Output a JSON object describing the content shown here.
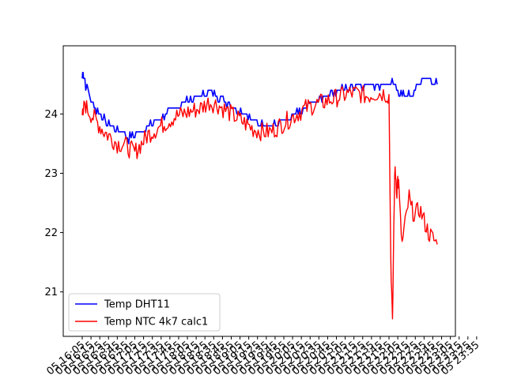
{
  "chart_data": {
    "type": "line",
    "title": "",
    "xlabel": "",
    "ylabel": "",
    "xlim": [
      "16:05",
      "23:35"
    ],
    "ylim": [
      20.25,
      25.15
    ],
    "grid": false,
    "legend_position": "lower-left",
    "y_ticks": [
      {
        "value": 21,
        "label": "21"
      },
      {
        "value": 22,
        "label": "22"
      },
      {
        "value": 23,
        "label": "23"
      },
      {
        "value": 24,
        "label": "24"
      }
    ],
    "x_tick_labels": [
      "05 16:05",
      "05 16:15",
      "05 16:25",
      "05 16:35",
      "05 16:45",
      "05 16:55",
      "05 17:05",
      "05 17:15",
      "05 17:25",
      "05 17:35",
      "05 17:45",
      "05 17:55",
      "05 18:05",
      "05 18:15",
      "05 18:25",
      "05 18:35",
      "05 18:45",
      "05 18:55",
      "05 19:05",
      "05 19:15",
      "05 19:25",
      "05 19:35",
      "05 19:45",
      "05 19:55",
      "05 20:05",
      "05 20:15",
      "05 20:25",
      "05 20:35",
      "05 20:45",
      "05 20:55",
      "05 21:05",
      "05 21:15",
      "05 21:25",
      "05 21:35",
      "05 21:45",
      "05 21:55",
      "05 22:05",
      "05 22:15",
      "05 22:25",
      "05 22:35",
      "05 22:45",
      "05 22:55",
      "05 23:05",
      "05 23:15",
      "05 23:25",
      "05 23:35"
    ],
    "series": [
      {
        "name": "Temp DHT11",
        "color": "#0000ff",
        "x": [
          "16:05",
          "16:06",
          "16:07",
          "16:09",
          "16:12",
          "16:15",
          "16:20",
          "16:25",
          "16:30",
          "16:38",
          "16:45",
          "16:52",
          "16:58",
          "17:05",
          "17:12",
          "17:20",
          "17:30",
          "17:40",
          "17:50",
          "18:00",
          "18:10",
          "18:20",
          "18:30",
          "18:40",
          "18:50",
          "19:00",
          "19:10",
          "19:20",
          "19:30",
          "19:40",
          "19:50",
          "20:00",
          "20:10",
          "20:20",
          "20:30",
          "20:40",
          "20:50",
          "21:00",
          "21:10",
          "21:20",
          "21:30",
          "21:40",
          "21:50",
          "22:00",
          "22:05",
          "22:10",
          "22:15",
          "22:20",
          "22:25",
          "22:30",
          "22:35",
          "22:40",
          "22:45",
          "22:50"
        ],
        "y": [
          24.6,
          24.7,
          24.6,
          24.5,
          24.4,
          24.2,
          24.1,
          24.0,
          23.9,
          23.8,
          23.7,
          23.7,
          23.6,
          23.65,
          23.7,
          23.8,
          23.9,
          24.0,
          24.1,
          24.2,
          24.25,
          24.3,
          24.35,
          24.3,
          24.2,
          24.1,
          24.0,
          23.9,
          23.85,
          23.8,
          23.85,
          23.9,
          24.0,
          24.1,
          24.2,
          24.3,
          24.35,
          24.4,
          24.45,
          24.5,
          24.5,
          24.5,
          24.5,
          24.5,
          24.4,
          24.3,
          24.3,
          24.3,
          24.4,
          24.5,
          24.6,
          24.6,
          24.5,
          24.5
        ]
      },
      {
        "name": "Temp NTC 4k7 calc1",
        "color": "#ff0000",
        "x": [
          "16:05",
          "16:06",
          "16:08",
          "16:10",
          "16:15",
          "16:20",
          "16:25",
          "16:30",
          "16:38",
          "16:45",
          "16:52",
          "17:00",
          "17:05",
          "17:10",
          "17:15",
          "17:20",
          "17:30",
          "17:40",
          "17:50",
          "18:00",
          "18:10",
          "18:20",
          "18:30",
          "18:40",
          "18:50",
          "19:00",
          "19:10",
          "19:20",
          "19:30",
          "19:40",
          "19:50",
          "20:00",
          "20:10",
          "20:20",
          "20:30",
          "20:40",
          "20:50",
          "21:00",
          "21:10",
          "21:20",
          "21:30",
          "21:40",
          "21:50",
          "21:55",
          "21:57",
          "21:58",
          "21:59",
          "22:00",
          "22:01",
          "22:02",
          "22:03",
          "22:04",
          "22:05",
          "22:06",
          "22:08",
          "22:10",
          "22:12",
          "22:15",
          "22:18",
          "22:20",
          "22:25",
          "22:30",
          "22:35",
          "22:40",
          "22:45",
          "22:50"
        ],
        "y": [
          23.9,
          24.0,
          24.2,
          24.1,
          24.0,
          23.9,
          23.8,
          23.7,
          23.6,
          23.5,
          23.5,
          23.4,
          23.35,
          23.45,
          23.55,
          23.65,
          23.75,
          23.85,
          23.95,
          24.0,
          24.05,
          24.1,
          24.2,
          24.15,
          24.05,
          23.95,
          23.85,
          23.75,
          23.7,
          23.7,
          23.8,
          23.9,
          24.0,
          24.1,
          24.15,
          24.2,
          24.25,
          24.3,
          24.35,
          24.35,
          24.3,
          24.35,
          24.35,
          24.3,
          21.6,
          21.0,
          20.4,
          21.6,
          22.6,
          23.1,
          22.9,
          22.7,
          22.9,
          22.8,
          22.2,
          21.8,
          22.0,
          22.3,
          22.6,
          22.4,
          22.3,
          22.4,
          22.2,
          22.0,
          21.9,
          21.8
        ]
      }
    ]
  }
}
